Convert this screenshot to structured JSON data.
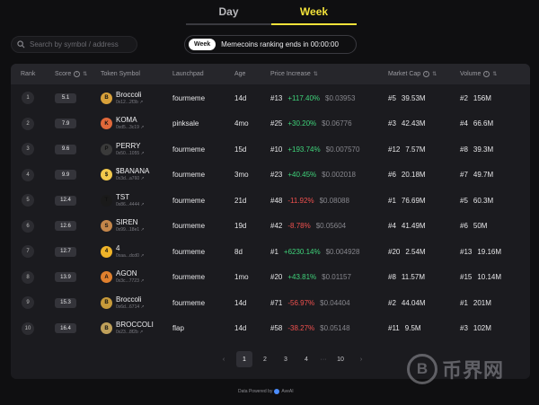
{
  "tabs": [
    {
      "label": "Day",
      "active": false
    },
    {
      "label": "Week",
      "active": true
    }
  ],
  "search": {
    "placeholder": "Search by symbol / address"
  },
  "banner": {
    "pill": "Week",
    "message": "Memecoins ranking ends in 00:00:00"
  },
  "columns": {
    "rank": "Rank",
    "score": "Score",
    "token": "Token Symbol",
    "launchpad": "Launchpad",
    "age": "Age",
    "price": "Price Increase",
    "mcap": "Market Cap",
    "volume": "Volume"
  },
  "rows": [
    {
      "rank": "1",
      "score": "5.1",
      "name": "Broccoli",
      "addr": "0x12...2f3b",
      "avatar_color": "#d9a13a",
      "avatar_text": "B",
      "launchpad": "fourmeme",
      "age": "14d",
      "price_rank": "#13",
      "price_change": "+117.40%",
      "price_dir": "pos",
      "price": "$0.03953",
      "mcap_rank": "#5",
      "mcap": "39.53M",
      "vol_rank": "#2",
      "vol": "156M"
    },
    {
      "rank": "2",
      "score": "7.9",
      "name": "KOMA",
      "addr": "0xd5...3c19",
      "avatar_color": "#e0683a",
      "avatar_text": "K",
      "launchpad": "pinksale",
      "age": "4mo",
      "price_rank": "#25",
      "price_change": "+30.20%",
      "price_dir": "pos",
      "price": "$0.06776",
      "mcap_rank": "#3",
      "mcap": "42.43M",
      "vol_rank": "#4",
      "vol": "66.6M"
    },
    {
      "rank": "3",
      "score": "9.6",
      "name": "PERRY",
      "addr": "0x50...1055",
      "avatar_color": "#3a3a3a",
      "avatar_text": "P",
      "launchpad": "fourmeme",
      "age": "15d",
      "price_rank": "#10",
      "price_change": "+193.74%",
      "price_dir": "pos",
      "price": "$0.007570",
      "mcap_rank": "#12",
      "mcap": "7.57M",
      "vol_rank": "#8",
      "vol": "39.3M"
    },
    {
      "rank": "4",
      "score": "9.9",
      "name": "$BANANA",
      "addr": "0x3d...a760",
      "avatar_color": "#f2c94c",
      "avatar_text": "$",
      "launchpad": "fourmeme",
      "age": "3mo",
      "price_rank": "#23",
      "price_change": "+40.45%",
      "price_dir": "pos",
      "price": "$0.002018",
      "mcap_rank": "#6",
      "mcap": "20.18M",
      "vol_rank": "#7",
      "vol": "49.7M"
    },
    {
      "rank": "5",
      "score": "12.4",
      "name": "TST",
      "addr": "0x86...4444",
      "avatar_color": "#1a1a1a",
      "avatar_text": "T",
      "launchpad": "fourmeme",
      "age": "21d",
      "price_rank": "#48",
      "price_change": "-11.92%",
      "price_dir": "neg",
      "price": "$0.08088",
      "mcap_rank": "#1",
      "mcap": "76.69M",
      "vol_rank": "#5",
      "vol": "60.3M"
    },
    {
      "rank": "6",
      "score": "12.6",
      "name": "SIREN",
      "addr": "0x99...18e1",
      "avatar_color": "#c4864a",
      "avatar_text": "S",
      "launchpad": "fourmeme",
      "age": "19d",
      "price_rank": "#42",
      "price_change": "-8.78%",
      "price_dir": "neg",
      "price": "$0.05604",
      "mcap_rank": "#4",
      "mcap": "41.49M",
      "vol_rank": "#6",
      "vol": "50M"
    },
    {
      "rank": "7",
      "score": "12.7",
      "name": "4",
      "addr": "0xaa...dcd0",
      "avatar_color": "#f0b429",
      "avatar_text": "4",
      "launchpad": "fourmeme",
      "age": "8d",
      "price_rank": "#1",
      "price_change": "+6230.14%",
      "price_dir": "pos",
      "price": "$0.004928",
      "mcap_rank": "#20",
      "mcap": "2.54M",
      "vol_rank": "#13",
      "vol": "19.16M"
    },
    {
      "rank": "8",
      "score": "13.9",
      "name": "AGON",
      "addr": "0x3c...7723",
      "avatar_color": "#e0802e",
      "avatar_text": "A",
      "launchpad": "fourmeme",
      "age": "1mo",
      "price_rank": "#20",
      "price_change": "+43.81%",
      "price_dir": "pos",
      "price": "$0.01157",
      "mcap_rank": "#8",
      "mcap": "11.57M",
      "vol_rank": "#15",
      "vol": "10.14M"
    },
    {
      "rank": "9",
      "score": "15.3",
      "name": "Broccoli",
      "addr": "0x6d...6714",
      "avatar_color": "#c79a3a",
      "avatar_text": "B",
      "launchpad": "fourmeme",
      "age": "14d",
      "price_rank": "#71",
      "price_change": "-56.97%",
      "price_dir": "neg",
      "price": "$0.04404",
      "mcap_rank": "#2",
      "mcap": "44.04M",
      "vol_rank": "#1",
      "vol": "201M"
    },
    {
      "rank": "10",
      "score": "16.4",
      "name": "BROCCOLI",
      "addr": "0x23...8f2b",
      "avatar_color": "#bfa05a",
      "avatar_text": "B",
      "launchpad": "flap",
      "age": "14d",
      "price_rank": "#58",
      "price_change": "-38.27%",
      "price_dir": "neg",
      "price": "$0.05148",
      "mcap_rank": "#11",
      "mcap": "9.5M",
      "vol_rank": "#3",
      "vol": "102M"
    }
  ],
  "pagination": {
    "prev": "‹",
    "pages": [
      "1",
      "2",
      "3",
      "4"
    ],
    "ellipsis": "···",
    "last": "10",
    "next": "›",
    "current": "1"
  },
  "footer": {
    "label": "Data Powered by",
    "brand": "AveAI"
  },
  "watermark": {
    "glyph": "B",
    "text": "币界网"
  }
}
